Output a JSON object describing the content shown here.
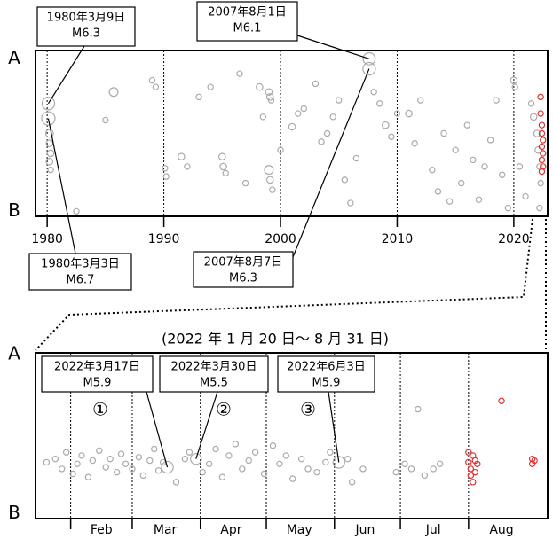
{
  "chart_data": [
    {
      "type": "scatter",
      "xlim": [
        1979,
        2022.9
      ],
      "ylim": [
        0,
        100
      ],
      "xticks": [
        1980,
        1990,
        2000,
        2010,
        2020
      ],
      "yticks": [
        {
          "value": 95,
          "label": "A"
        },
        {
          "value": 3,
          "label": "B"
        }
      ],
      "grid": true,
      "series": [
        {
          "color": "#aaaaaa",
          "x": [
            1980.1,
            1980.1,
            1980.2,
            1980.2,
            1980.3,
            1980.2,
            1980.3,
            1982.5,
            1985.7,
            1985,
            1989,
            1989.3,
            1990.1,
            1990.2,
            1991.5,
            1992,
            1993,
            1994,
            1995,
            1995.1,
            1995.3,
            1996.5,
            1997,
            1998.2,
            1998.5,
            1999,
            1999.1,
            1999.2,
            1999,
            1999.1,
            1999.3,
            2000,
            2001,
            2001.5,
            2002,
            2003,
            2003.5,
            2004,
            2004.5,
            2005,
            2005.5,
            2006,
            2006.5,
            2007.6,
            2007.6,
            2008,
            2008.5,
            2009,
            2009.5,
            2010,
            2011,
            2011.5,
            2012,
            2013,
            2013.5,
            2014,
            2014.5,
            2015,
            2015.5,
            2016,
            2016.5,
            2017,
            2017.5,
            2018,
            2018.5,
            2019,
            2019.5,
            2020,
            2020.1,
            2020.5,
            2021,
            2021.5,
            2021.7,
            2022,
            2022.1,
            2022.2,
            2022.3,
            2022.2
          ],
          "values": [
            68,
            59,
            50,
            44,
            38,
            33,
            28,
            3,
            75,
            58,
            82,
            78,
            29,
            24,
            36,
            30,
            72,
            78,
            36,
            30,
            26,
            86,
            20,
            78,
            60,
            75,
            72,
            70,
            28,
            22,
            16,
            40,
            54,
            62,
            65,
            80,
            45,
            50,
            60,
            70,
            22,
            8,
            35,
            95,
            89,
            75,
            68,
            55,
            48,
            62,
            62,
            44,
            70,
            28,
            15,
            50,
            9,
            40,
            20,
            55,
            34,
            10,
            30,
            46,
            70,
            25,
            5,
            82,
            78,
            30,
            12,
            68,
            60,
            50,
            40,
            30,
            20,
            5
          ],
          "sizes": [
            6.3,
            6.7,
            4,
            3.5,
            3.5,
            3.5,
            3,
            3,
            4.5,
            3,
            3,
            3,
            3,
            3,
            3.5,
            3,
            3,
            3,
            3.5,
            3.5,
            3,
            3,
            3,
            3.5,
            3,
            3.5,
            3.5,
            3,
            4.5,
            3.5,
            3,
            3,
            3.5,
            3,
            3,
            3,
            3,
            3,
            3,
            3,
            3,
            3,
            3,
            6.1,
            6.3,
            3,
            3,
            3.5,
            3,
            3,
            3.5,
            3,
            3,
            3,
            3,
            3,
            3,
            3,
            3,
            3,
            3,
            3,
            3,
            3,
            3,
            3,
            3,
            3.5,
            3,
            3,
            3,
            3,
            3.5,
            3.5,
            3.5,
            3,
            3,
            3
          ]
        },
        {
          "color": "#e03030",
          "x": [
            2022.3,
            2022.3,
            2022.4,
            2022.4,
            2022.5,
            2022.4,
            2022.5,
            2022.4,
            2022.5,
            2022.4
          ],
          "values": [
            72,
            62,
            55,
            50,
            46,
            42,
            38,
            34,
            30,
            27
          ],
          "sizes": [
            3,
            3,
            3,
            3,
            3,
            3,
            3,
            3,
            3,
            3
          ]
        }
      ],
      "annotations": [
        {
          "text": [
            "1980年3月9日",
            "M6.3"
          ],
          "x": 1980.1,
          "y": 68
        },
        {
          "text": [
            "2007年8月1日",
            "M6.1"
          ],
          "x": 2007.6,
          "y": 95
        },
        {
          "text": [
            "1980年3月3日",
            "M6.7"
          ],
          "x": 1980.1,
          "y": 59
        },
        {
          "text": [
            "2007年8月7日",
            "M6.3"
          ],
          "x": 2007.6,
          "y": 89
        }
      ]
    },
    {
      "type": "scatter",
      "title": "(2022 年 1 月 20 日～ 8 月 31 日)",
      "xlim": [
        16,
        249
      ],
      "ylim": [
        0,
        100
      ],
      "xticks": [
        {
          "value": 46,
          "label": "Feb"
        },
        {
          "value": 75,
          "label": "Mar"
        },
        {
          "value": 105,
          "label": "Apr"
        },
        {
          "value": 136,
          "label": "May"
        },
        {
          "value": 166,
          "label": "Jun"
        },
        {
          "value": 197,
          "label": "Jul"
        },
        {
          "value": 228,
          "label": "Aug"
        }
      ],
      "grid_lines": [
        32,
        60,
        91,
        121,
        152,
        182,
        213
      ],
      "yticks": [
        {
          "value": 99,
          "label": "A"
        },
        {
          "value": 3,
          "label": "B"
        }
      ],
      "series": [
        {
          "color": "#aaaaaa",
          "x": [
            21,
            25,
            28,
            30,
            33,
            35,
            37,
            40,
            42,
            45,
            48,
            50,
            53,
            55,
            57,
            60,
            63,
            65,
            68,
            70,
            72,
            74,
            76,
            80,
            84,
            86,
            89,
            92,
            95,
            98,
            101,
            104,
            107,
            110,
            113,
            116,
            120,
            124,
            127,
            130,
            133,
            137,
            140,
            144,
            148,
            150,
            154,
            158,
            160,
            165,
            180,
            184,
            187,
            190,
            193,
            197,
            200
          ],
          "values": [
            34,
            36,
            30,
            40,
            27,
            33,
            38,
            25,
            35,
            41,
            31,
            36,
            28,
            39,
            33,
            30,
            37,
            26,
            35,
            42,
            29,
            34,
            31,
            22,
            36,
            40,
            36,
            28,
            33,
            42,
            25,
            38,
            45,
            30,
            35,
            40,
            27,
            44,
            33,
            38,
            24,
            36,
            30,
            28,
            34,
            40,
            34,
            36,
            22,
            30,
            28,
            33,
            30,
            66,
            26,
            30,
            33
          ],
          "sizes": [
            3,
            3,
            3,
            3,
            3,
            3,
            3,
            3,
            3,
            3,
            3,
            3,
            3,
            3,
            3,
            3,
            3,
            3,
            3,
            3,
            3,
            3,
            5.9,
            3,
            3,
            3,
            5.5,
            3,
            3,
            3,
            3,
            3,
            3,
            3,
            3,
            3,
            3,
            3,
            3,
            3,
            3,
            3,
            3,
            3,
            3,
            3,
            5.9,
            3,
            3,
            3,
            3,
            3,
            3,
            3,
            3,
            3,
            3
          ]
        },
        {
          "color": "#e03030",
          "x": [
            213,
            213,
            214,
            214,
            215,
            215,
            216,
            216,
            217,
            228,
            242,
            242,
            243
          ],
          "values": [
            40,
            34,
            30,
            26,
            38,
            22,
            35,
            28,
            33,
            71,
            36,
            33,
            35
          ],
          "sizes": [
            3,
            3,
            3,
            3,
            3,
            3,
            3,
            3,
            3,
            3,
            3,
            3,
            3
          ]
        }
      ],
      "annotations": [
        {
          "text": [
            "2022年3月17日",
            "M5.9"
          ],
          "marker": "①",
          "x": 76,
          "y": 31
        },
        {
          "text": [
            "2022年3月30日",
            "M5.5"
          ],
          "marker": "②",
          "x": 89,
          "y": 36
        },
        {
          "text": [
            "2022年6月3日",
            "M5.9"
          ],
          "marker": "③",
          "x": 154,
          "y": 34
        }
      ]
    }
  ]
}
